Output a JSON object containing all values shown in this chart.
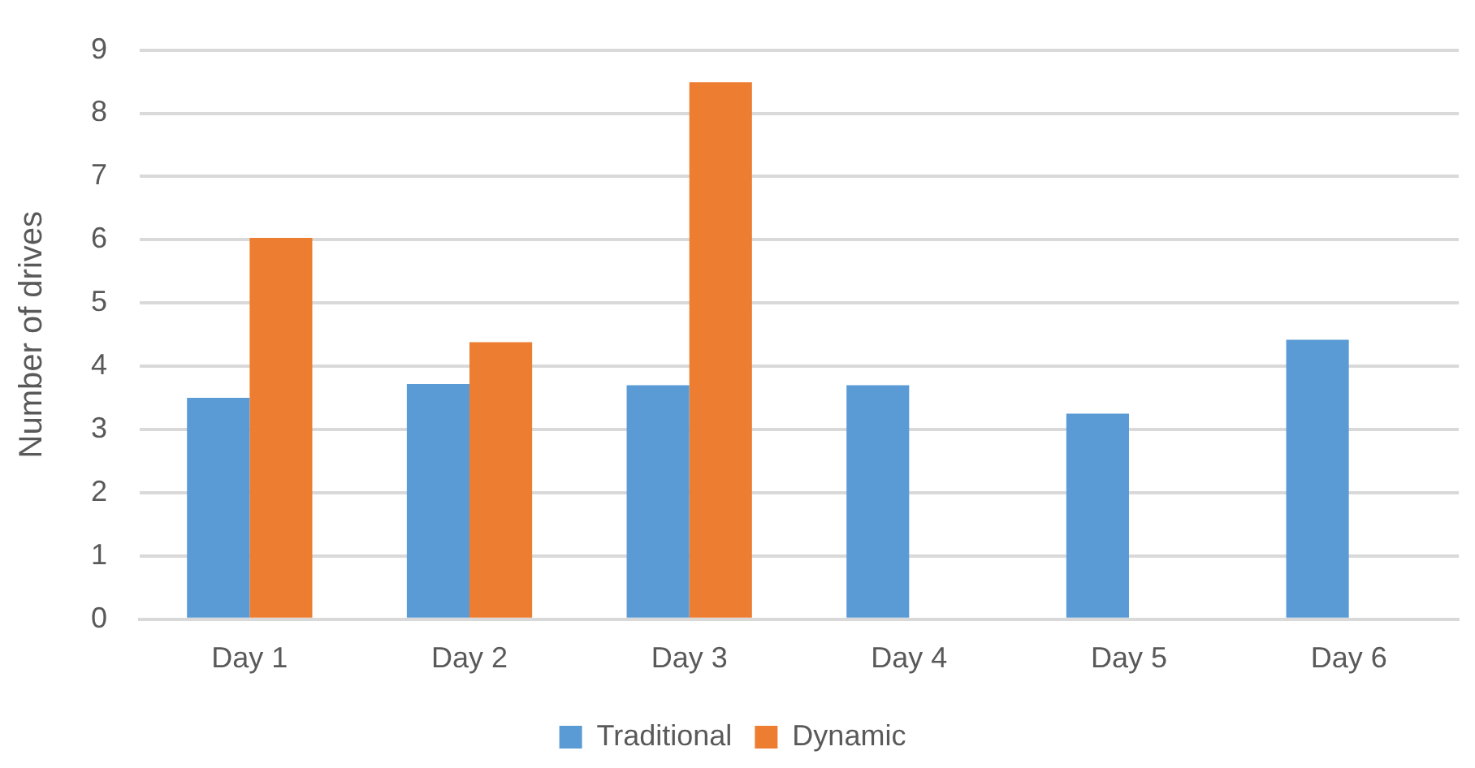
{
  "chart_data": {
    "type": "bar",
    "ylabel": "Number of drives",
    "categories": [
      "Day 1",
      "Day 2",
      "Day 3",
      "Day 4",
      "Day 5",
      "Day 6"
    ],
    "series": [
      {
        "name": "Traditional",
        "color": "#5b9bd5",
        "values": [
          3.5,
          3.72,
          3.7,
          3.7,
          3.25,
          4.42
        ]
      },
      {
        "name": "Dynamic",
        "color": "#ed7d31",
        "values": [
          6.03,
          4.38,
          8.49,
          null,
          null,
          null
        ]
      }
    ],
    "ylim": [
      0,
      9
    ],
    "yticks": [
      0,
      1,
      2,
      3,
      4,
      5,
      6,
      7,
      8,
      9
    ],
    "grid": "y",
    "legend": "bottom"
  }
}
